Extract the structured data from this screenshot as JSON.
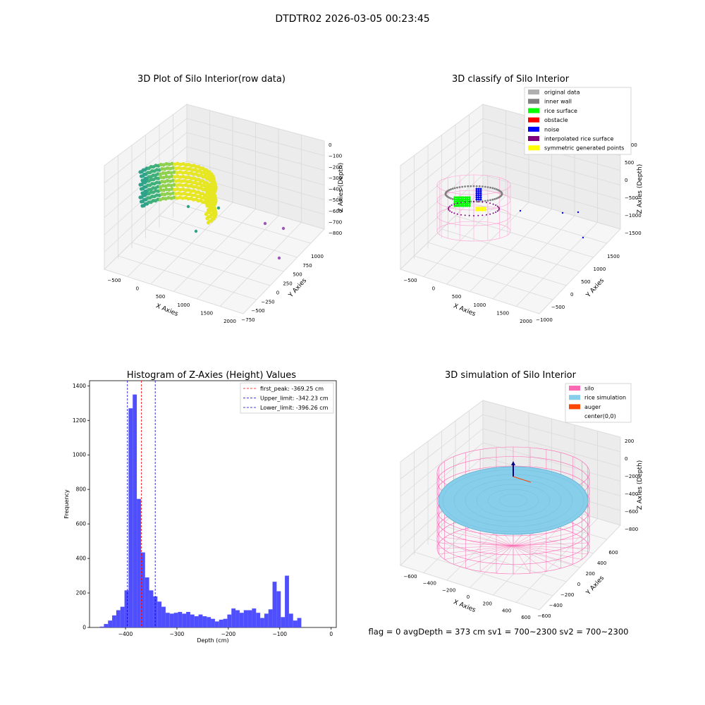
{
  "suptitle": "DTDTR02 2026-03-05 00:23:45",
  "colors": {
    "hist_bar": "#4f4fff",
    "peak_line": "#ff0000",
    "limit_line": "#0000cc",
    "pane_face": "#f2f2f2",
    "grid": "#dcdcdc",
    "silo": "#ff69b4",
    "rice_sim": "#87ceeb",
    "auger": "#ff4500",
    "raw_a": "#2fa38a",
    "raw_b": "#e6e622",
    "original": "#b0b0b0",
    "inner_wall": "#808080",
    "rice_surface": "#00ff00",
    "obstacle": "#ff0000",
    "noise": "#0000ff",
    "interpolated": "#800080",
    "symmetric": "#ffff00"
  },
  "panels": {
    "raw": {
      "title": "3D Plot of Silo Interior(row data)",
      "xlabel": "X Axies",
      "ylabel": "Y Axies",
      "zlabel": "Z Axies (Depth)",
      "xticks": [
        "−500",
        "0",
        "500",
        "1000",
        "1500",
        "2000"
      ],
      "yticks": [
        "1000",
        "750",
        "500",
        "250",
        "0",
        "−250",
        "−500",
        "−750"
      ],
      "zticks": [
        "0",
        "−100",
        "−200",
        "−300",
        "−400",
        "−500",
        "−600",
        "−700",
        "−800"
      ]
    },
    "classify": {
      "title": "3D classify of Silo Interior",
      "xlabel": "X Axies",
      "ylabel": "Y Axies",
      "zlabel": "Z Axies (Depth)",
      "xticks": [
        "−500",
        "0",
        "500",
        "1000",
        "1500",
        "2000"
      ],
      "yticks": [
        "1500",
        "1000",
        "500",
        "0",
        "−500",
        "−1000"
      ],
      "zticks": [
        "1000",
        "500",
        "0",
        "−500",
        "−1000",
        "−1500"
      ],
      "legend": [
        {
          "label": "original data",
          "color": "#b0b0b0"
        },
        {
          "label": "inner wall",
          "color": "#808080"
        },
        {
          "label": "rice surface",
          "color": "#00ff00"
        },
        {
          "label": "obstacle",
          "color": "#ff0000"
        },
        {
          "label": "noise",
          "color": "#0000ff"
        },
        {
          "label": "interpolated rice surface",
          "color": "#800080"
        },
        {
          "label": "symmetric generated points",
          "color": "#ffff00"
        }
      ]
    },
    "simulation": {
      "title": "3D simulation of Silo Interior",
      "xlabel": "X Axies",
      "ylabel": "Y Axies",
      "zlabel": "Z Axies (Depth)",
      "xticks": [
        "−600",
        "−400",
        "−200",
        "0",
        "200",
        "400",
        "600"
      ],
      "yticks": [
        "600",
        "400",
        "200",
        "0",
        "−200",
        "−400",
        "−600"
      ],
      "zticks": [
        "200",
        "0",
        "−200",
        "−400",
        "−600",
        "−800"
      ],
      "legend": [
        {
          "label": "silo",
          "color": "#ff69b4"
        },
        {
          "label": "rice simulation",
          "color": "#87ceeb"
        },
        {
          "label": "auger",
          "color": "#ff4500"
        },
        {
          "label": "center(0,0)",
          "color": ""
        }
      ],
      "footer": "flag = 0     avgDepth = 373 cm  sv1 = 700~2300  sv2 = 700~2300"
    }
  },
  "chart_data": {
    "type": "bar",
    "title": "Histogram of Z-Axies (Height) Values",
    "xlabel": "Depth (cm)",
    "ylabel": "Frequency",
    "xlim": [
      -470,
      10
    ],
    "ylim": [
      0,
      1430
    ],
    "xticks": [
      -400,
      -300,
      -200,
      -100,
      0
    ],
    "yticks": [
      0,
      200,
      400,
      600,
      800,
      1000,
      1200,
      1400
    ],
    "bin_start": -450,
    "bin_width": 8,
    "values": [
      5,
      20,
      40,
      70,
      100,
      120,
      215,
      1270,
      1350,
      745,
      435,
      290,
      215,
      180,
      150,
      120,
      85,
      80,
      85,
      90,
      80,
      90,
      75,
      65,
      75,
      65,
      60,
      50,
      35,
      45,
      50,
      75,
      110,
      100,
      85,
      100,
      100,
      110,
      85,
      55,
      80,
      105,
      265,
      210,
      60,
      300,
      80,
      40,
      55
    ],
    "vlines": [
      {
        "name": "first_peak: -369.25 cm",
        "x": -369.25,
        "color": "#ff0000"
      },
      {
        "name": "Upper_limit: -342.23 cm",
        "x": -342.23,
        "color": "#0000cc"
      },
      {
        "name": "Lower_limit: -396.26 cm",
        "x": -396.26,
        "color": "#0000cc"
      }
    ]
  }
}
